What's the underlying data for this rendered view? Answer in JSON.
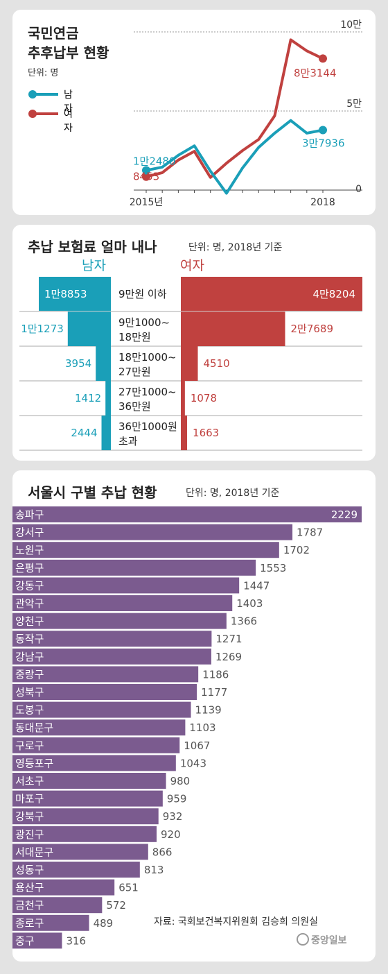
{
  "panel1": {
    "title_line1": "국민연금",
    "title_line2": "추후납부 현황",
    "unit": "단위: 명",
    "legend": [
      {
        "label": "남자",
        "color": "#1a9fb8"
      },
      {
        "label": "여자",
        "color": "#c0413f"
      }
    ],
    "y_ticks": [
      "10만",
      "5만",
      "0"
    ],
    "x_ticks": [
      "2015년",
      "2018"
    ],
    "labels": {
      "male_start": "1만2480",
      "female_start": "8453",
      "male_end": "3만7936",
      "female_end": "8만3144"
    }
  },
  "panel2": {
    "title": "추납 보험료 얼마 내나",
    "unit": "단위: 명, 2018년 기준",
    "male_header": "남자",
    "female_header": "여자",
    "rows": [
      {
        "range1": "9만원 이하",
        "range2": "",
        "male": 18853,
        "female": 48204,
        "male_label": "1만8853",
        "female_label": "4만8204"
      },
      {
        "range1": "9만1000~",
        "range2": "18만원",
        "male": 11273,
        "female": 27689,
        "male_label": "1만1273",
        "female_label": "2만7689"
      },
      {
        "range1": "18만1000~",
        "range2": "27만원",
        "male": 3954,
        "female": 4510,
        "male_label": "3954",
        "female_label": "4510"
      },
      {
        "range1": "27만1000~",
        "range2": "36만원",
        "male": 1412,
        "female": 1078,
        "male_label": "1412",
        "female_label": "1078"
      },
      {
        "range1": "36만1000원",
        "range2": "초과",
        "male": 2444,
        "female": 1663,
        "male_label": "2444",
        "female_label": "1663"
      }
    ]
  },
  "panel3": {
    "title": "서울시 구별 추납 현황",
    "unit": "단위: 명, 2018년 기준",
    "source": "자료: 국회보건복지위원회 김승희 의원실",
    "logo": "중앙일보"
  },
  "chart_data": [
    {
      "type": "line",
      "title": "국민연금 추후납부 현황",
      "unit": "명",
      "x": [
        "2015",
        "",
        "",
        "",
        "",
        "",
        "",
        "",
        "",
        "",
        "",
        "2018"
      ],
      "series": [
        {
          "name": "남자",
          "color": "#1a9fb8",
          "values": [
            12480,
            14500,
            22000,
            28000,
            12000,
            -2000,
            14000,
            27000,
            36000,
            44000,
            36000,
            37936
          ]
        },
        {
          "name": "여자",
          "color": "#c0413f",
          "values": [
            8453,
            11000,
            19000,
            24500,
            8000,
            17000,
            25000,
            32000,
            47000,
            95000,
            88000,
            83144
          ]
        }
      ],
      "ylim": [
        0,
        100000
      ],
      "y_ticks": [
        "10만",
        "5만",
        "0"
      ]
    },
    {
      "type": "bar",
      "title": "추납 보험료 얼마 내나",
      "unit": "명, 2018년 기준",
      "categories": [
        "9만원 이하",
        "9만1000~18만원",
        "18만1000~27만원",
        "27만1000~36만원",
        "36만1000원 초과"
      ],
      "series": [
        {
          "name": "남자",
          "values": [
            18853,
            11273,
            3954,
            1412,
            2444
          ]
        },
        {
          "name": "여자",
          "values": [
            48204,
            27689,
            4510,
            1078,
            1663
          ]
        }
      ]
    },
    {
      "type": "bar",
      "title": "서울시 구별 추납 현황",
      "unit": "명, 2018년 기준",
      "bar_color": "#7b5b8f",
      "categories": [
        "송파구",
        "강서구",
        "노원구",
        "은평구",
        "강동구",
        "관악구",
        "양천구",
        "동작구",
        "강남구",
        "중랑구",
        "성북구",
        "도봉구",
        "동대문구",
        "구로구",
        "영등포구",
        "서초구",
        "마포구",
        "강북구",
        "광진구",
        "서대문구",
        "성동구",
        "용산구",
        "금천구",
        "종로구",
        "중구"
      ],
      "values": [
        2229,
        1787,
        1702,
        1553,
        1447,
        1403,
        1366,
        1271,
        1269,
        1186,
        1177,
        1139,
        1103,
        1067,
        1043,
        980,
        959,
        932,
        920,
        866,
        813,
        651,
        572,
        489,
        316
      ]
    }
  ]
}
